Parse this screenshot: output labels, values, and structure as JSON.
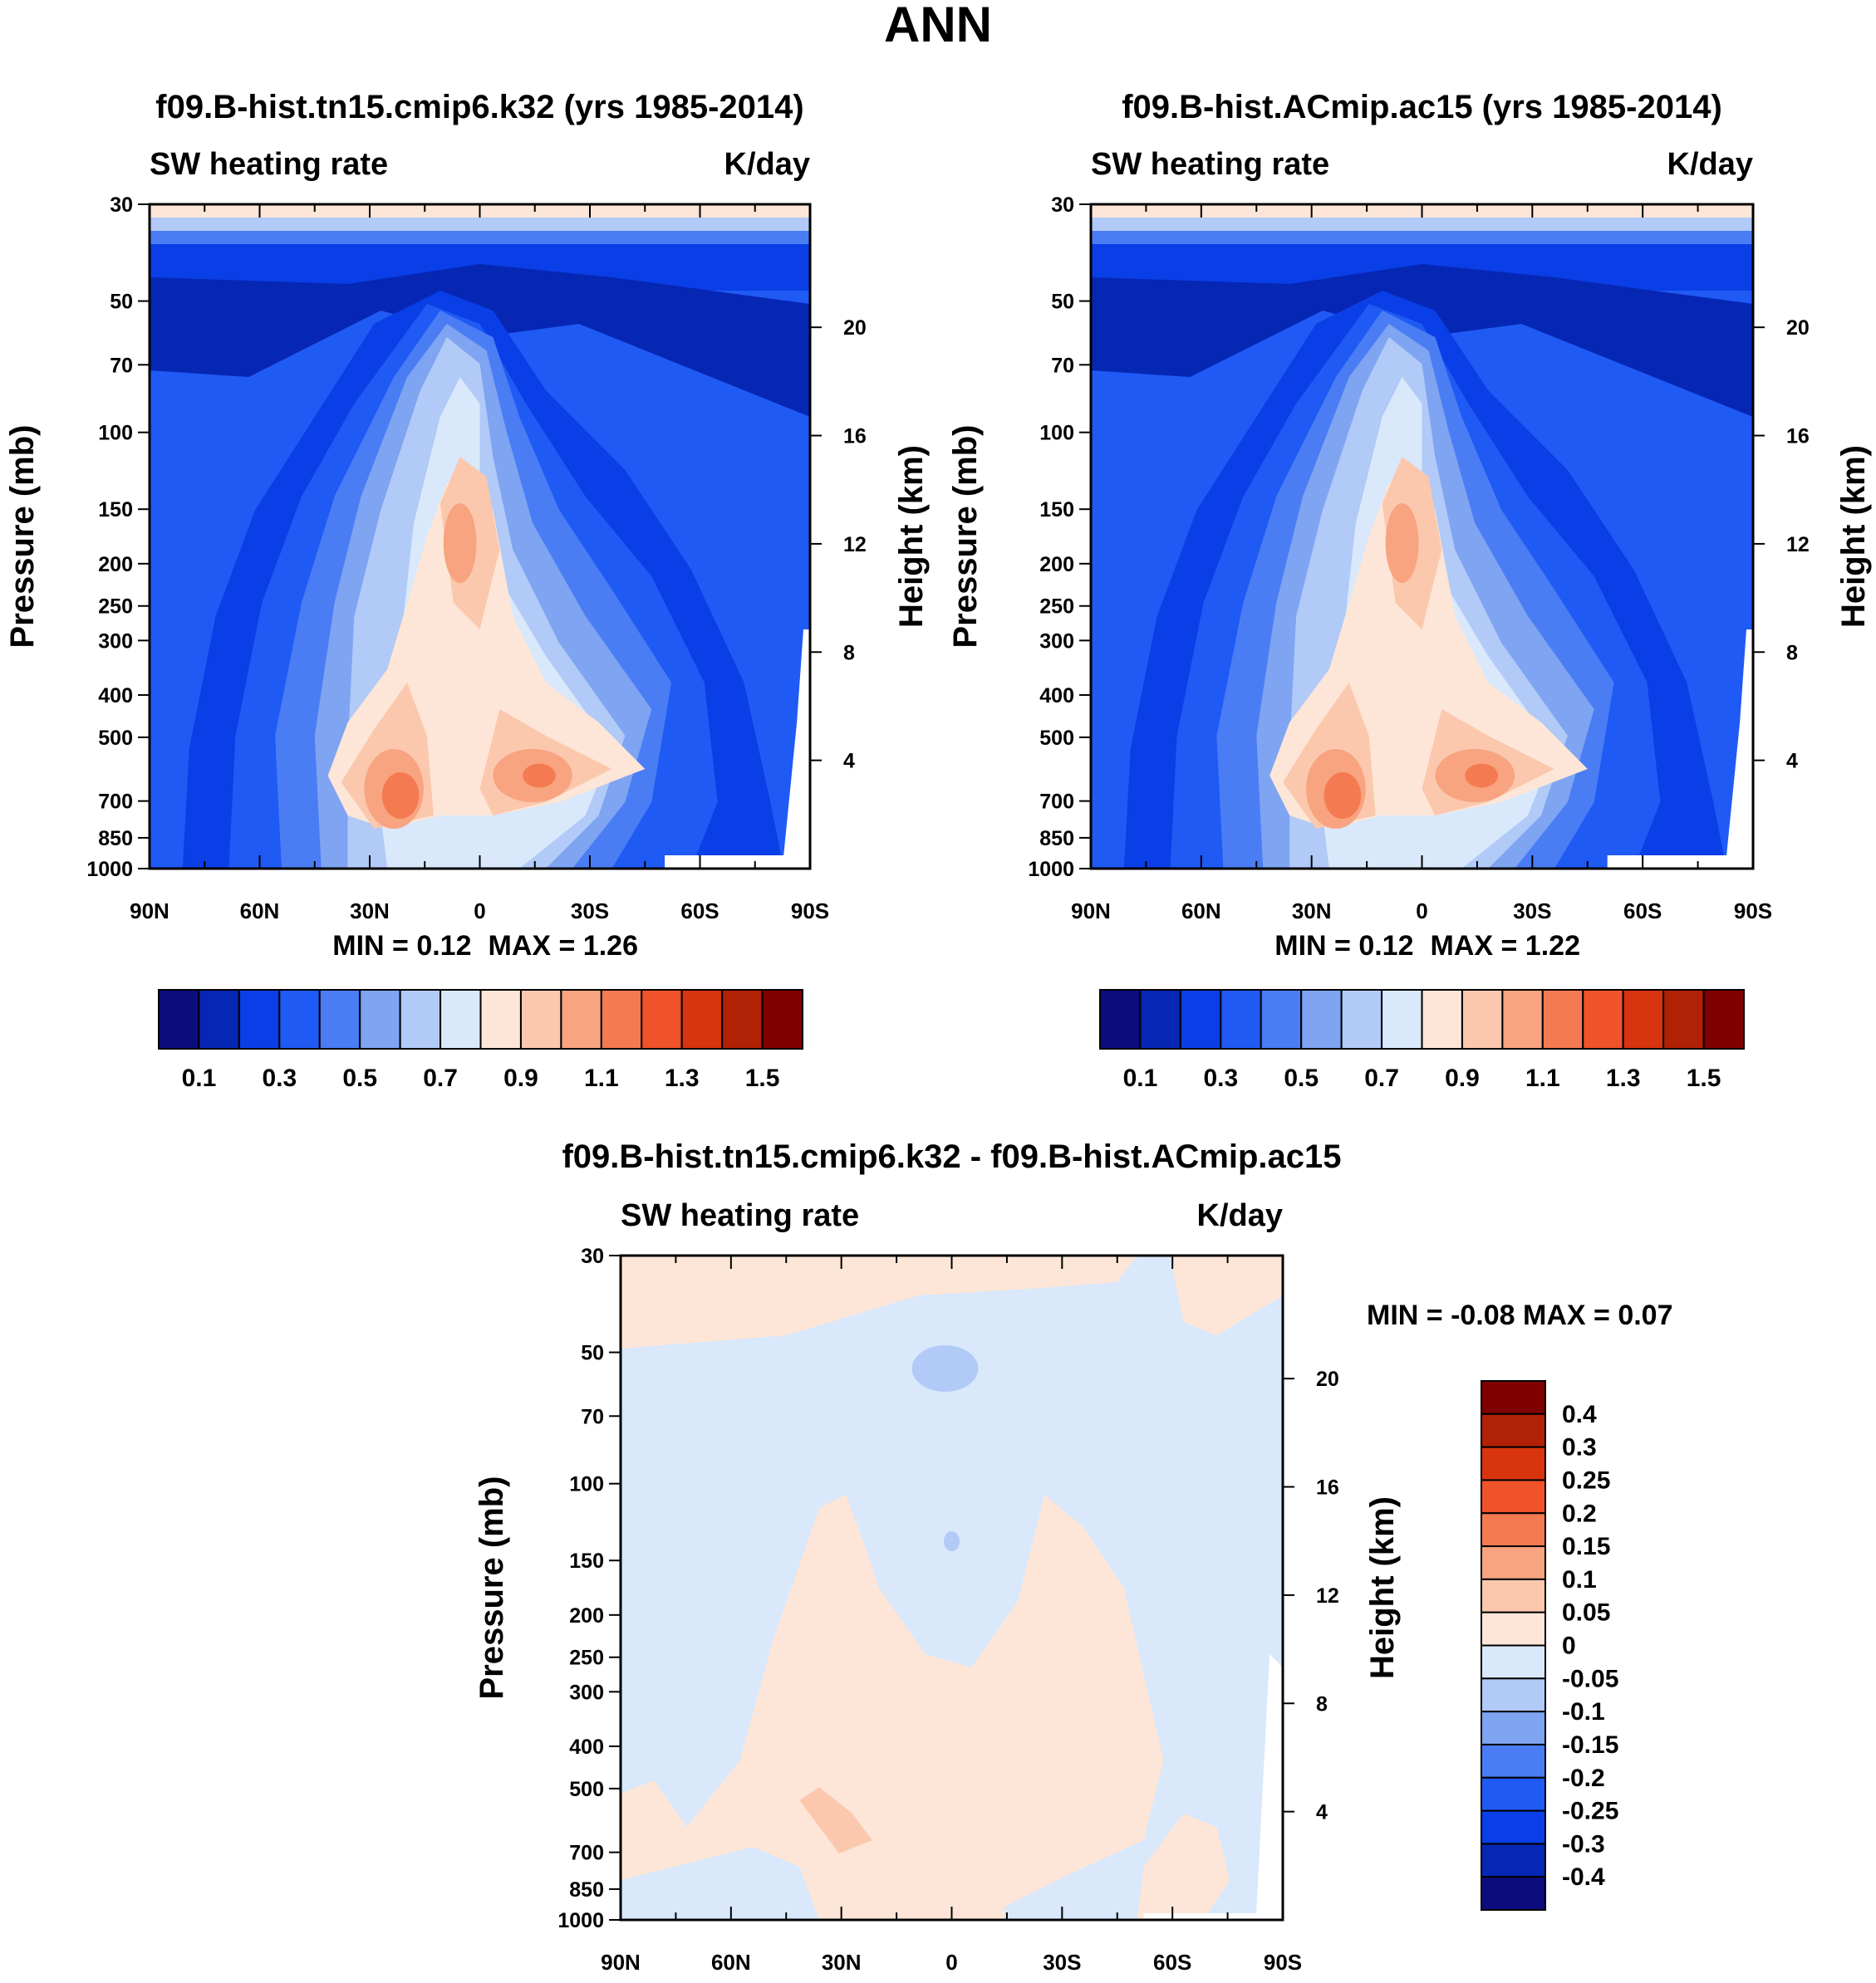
{
  "figure": {
    "title": "ANN"
  },
  "colors": {
    "base_cmap": [
      "#0b0d7d",
      "#0626b4",
      "#0a3ee6",
      "#1f5af5",
      "#4a7df4",
      "#7ea4f2",
      "#b1caf7",
      "#d9e8fb",
      "#fde6d7",
      "#fbc8ae",
      "#f8a480",
      "#f47a52",
      "#f0532a",
      "#d8340e",
      "#b12106",
      "#800000"
    ],
    "diff_cmap": [
      "#0b0d7d",
      "#0626b4",
      "#0a3ee6",
      "#1f5af5",
      "#4a7df4",
      "#7ea4f2",
      "#b1caf7",
      "#d9e8fb",
      "#fde6d7",
      "#fbc8ae",
      "#f8a480",
      "#f47a52",
      "#f0532a",
      "#d8340e",
      "#b12106",
      "#800000"
    ]
  },
  "chart_data": [
    {
      "type": "contour",
      "title": "f09.B-hist.tn15.cmip6.k32 (yrs 1985-2014)",
      "left_label": "SW heating rate",
      "right_label": "K/day",
      "ylabel": "Pressure (mb)",
      "ylabel_right": "Height (km)",
      "x_ticks": [
        "90N",
        "60N",
        "30N",
        "0",
        "30S",
        "60S",
        "90S"
      ],
      "x_values": [
        90,
        60,
        30,
        0,
        -30,
        -60,
        -90
      ],
      "p_ticks": [
        30,
        50,
        70,
        100,
        150,
        200,
        250,
        300,
        400,
        500,
        700,
        850,
        1000
      ],
      "p_tick_labels": [
        "30",
        "50",
        "70",
        "100",
        "150",
        "200",
        "250",
        "300",
        "400",
        "500",
        "700",
        "850",
        "1000"
      ],
      "z_ticks": [
        20,
        16,
        12,
        8,
        4
      ],
      "z_tick_labels": [
        "20",
        "16",
        "12",
        "8",
        "4"
      ],
      "ylim": [
        1000,
        30
      ],
      "min_label": "MIN =   0.12",
      "max_label": "MAX =   1.26",
      "min": 0.12,
      "max": 1.26,
      "levels": [
        0.1,
        0.3,
        0.5,
        0.7,
        0.9,
        1.1,
        1.3,
        1.5
      ],
      "level_labels": [
        "0.1",
        "0.3",
        "0.5",
        "0.7",
        "0.9",
        "1.1",
        "1.3",
        "1.5"
      ],
      "colorbar": "horizontal"
    },
    {
      "type": "contour",
      "title": "f09.B-hist.ACmip.ac15 (yrs 1985-2014)",
      "left_label": "SW heating rate",
      "right_label": "K/day",
      "ylabel": "Pressure (mb)",
      "ylabel_right": "Height (km)",
      "x_ticks": [
        "90N",
        "60N",
        "30N",
        "0",
        "30S",
        "60S",
        "90S"
      ],
      "x_values": [
        90,
        60,
        30,
        0,
        -30,
        -60,
        -90
      ],
      "p_ticks": [
        30,
        50,
        70,
        100,
        150,
        200,
        250,
        300,
        400,
        500,
        700,
        850,
        1000
      ],
      "p_tick_labels": [
        "30",
        "50",
        "70",
        "100",
        "150",
        "200",
        "250",
        "300",
        "400",
        "500",
        "700",
        "850",
        "1000"
      ],
      "z_ticks": [
        20,
        16,
        12,
        8,
        4
      ],
      "z_tick_labels": [
        "20",
        "16",
        "12",
        "8",
        "4"
      ],
      "ylim": [
        1000,
        30
      ],
      "min_label": "MIN =   0.12",
      "max_label": "MAX =   1.22",
      "min": 0.12,
      "max": 1.22,
      "levels": [
        0.1,
        0.3,
        0.5,
        0.7,
        0.9,
        1.1,
        1.3,
        1.5
      ],
      "level_labels": [
        "0.1",
        "0.3",
        "0.5",
        "0.7",
        "0.9",
        "1.1",
        "1.3",
        "1.5"
      ],
      "colorbar": "horizontal"
    },
    {
      "type": "contour",
      "title": "f09.B-hist.tn15.cmip6.k32 - f09.B-hist.ACmip.ac15",
      "left_label": "SW heating rate",
      "right_label": "K/day",
      "ylabel": "Pressure (mb)",
      "ylabel_right": "Height (km)",
      "x_ticks": [
        "90N",
        "60N",
        "30N",
        "0",
        "30S",
        "60S",
        "90S"
      ],
      "x_values": [
        90,
        60,
        30,
        0,
        -30,
        -60,
        -90
      ],
      "p_ticks": [
        30,
        50,
        70,
        100,
        150,
        200,
        250,
        300,
        400,
        500,
        700,
        850,
        1000
      ],
      "p_tick_labels": [
        "30",
        "50",
        "70",
        "100",
        "150",
        "200",
        "250",
        "300",
        "400",
        "500",
        "700",
        "850",
        "1000"
      ],
      "z_ticks": [
        20,
        16,
        12,
        8,
        4
      ],
      "z_tick_labels": [
        "20",
        "16",
        "12",
        "8",
        "4"
      ],
      "ylim": [
        1000,
        30
      ],
      "min_label": "MIN =  -0.08",
      "max_label": "MAX =   0.07",
      "min": -0.08,
      "max": 0.07,
      "levels": [
        0.4,
        0.3,
        0.25,
        0.2,
        0.15,
        0.1,
        0.05,
        0,
        -0.05,
        -0.1,
        -0.15,
        -0.2,
        -0.25,
        -0.3,
        -0.4
      ],
      "level_labels": [
        "0.4",
        "0.3",
        "0.25",
        "0.2",
        "0.15",
        "0.1",
        "0.05",
        "0",
        "-0.05",
        "-0.1",
        "-0.15",
        "-0.2",
        "-0.25",
        "-0.3",
        "-0.4"
      ],
      "colorbar": "vertical"
    }
  ]
}
